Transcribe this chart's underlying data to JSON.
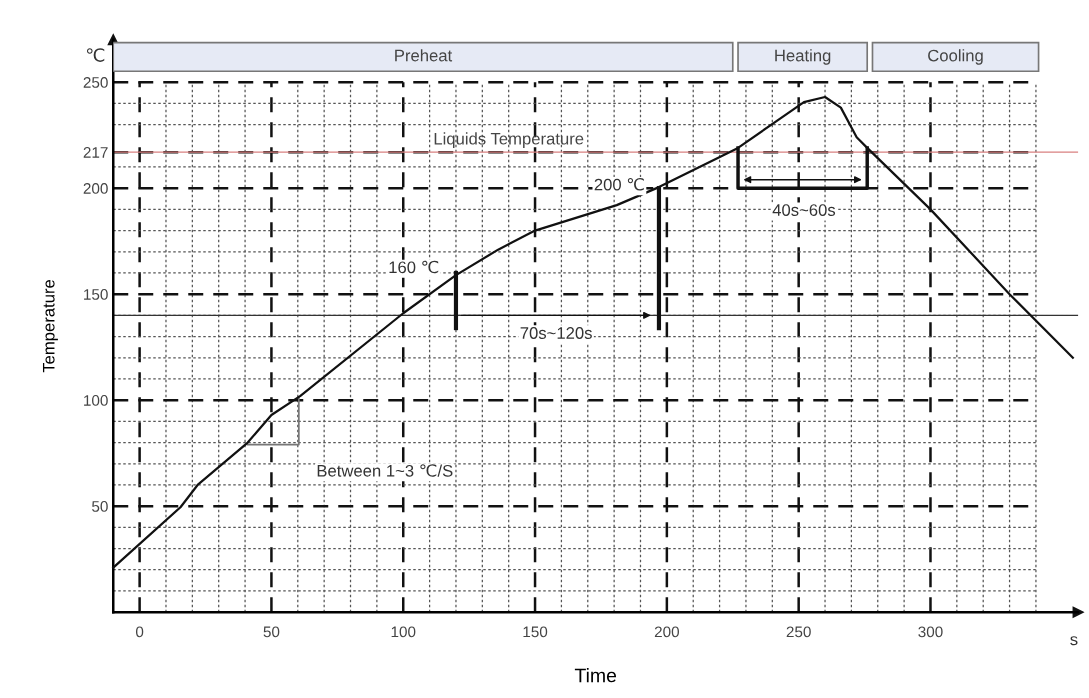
{
  "chart_data": {
    "type": "line",
    "xlabel": "Time",
    "ylabel": "Temperature",
    "x": [
      -10,
      15.5,
      22,
      41,
      50,
      61,
      100,
      120,
      136,
      150,
      181,
      197,
      227,
      242,
      252,
      260,
      266,
      272,
      276,
      300,
      330,
      354
    ],
    "series": [
      {
        "color": "#111111",
        "values": [
          21,
          49.5,
          60,
          80,
          93,
          102,
          141,
          159,
          171,
          180,
          192,
          200.5,
          219,
          232,
          240.6,
          243,
          238,
          224,
          219,
          190,
          150,
          120
        ]
      }
    ],
    "xlim": [
      -10,
      356
    ],
    "ylim": [
      0,
      270
    ],
    "xticks": [
      0,
      {
        "value": 10,
        "label": null
      },
      {
        "value": 20,
        "label": null
      },
      {
        "value": 30,
        "label": null
      },
      {
        "value": 40,
        "label": null
      },
      50,
      {
        "value": 60,
        "label": null
      },
      {
        "value": 70,
        "label": null
      },
      {
        "value": 80,
        "label": null
      },
      {
        "value": 90,
        "label": null
      },
      100,
      {
        "value": 110,
        "label": null
      },
      {
        "value": 120,
        "label": null
      },
      {
        "value": 130,
        "label": null
      },
      {
        "value": 140,
        "label": null
      },
      150,
      {
        "value": 160,
        "label": null
      },
      {
        "value": 170,
        "label": null
      },
      {
        "value": 180,
        "label": null
      },
      {
        "value": 190,
        "label": null
      },
      200,
      {
        "value": 210,
        "label": null
      },
      {
        "value": 220,
        "label": null
      },
      {
        "value": 230,
        "label": null
      },
      {
        "value": 240,
        "label": null
      },
      250,
      {
        "value": 260,
        "label": null
      },
      {
        "value": 270,
        "label": null
      },
      {
        "value": 280,
        "label": null
      },
      {
        "value": 290,
        "label": null
      },
      300,
      {
        "value": 310,
        "label": null
      },
      {
        "value": 320,
        "label": null
      },
      {
        "value": 330,
        "label": null
      },
      {
        "value": 340,
        "label": null
      }
    ],
    "yticks": [
      {
        "value": 10,
        "label": null
      },
      {
        "value": 20,
        "label": null
      },
      {
        "value": 30,
        "label": null
      },
      {
        "value": 40,
        "label": null
      },
      50,
      {
        "value": 60,
        "label": null
      },
      {
        "value": 70,
        "label": null
      },
      {
        "value": 80,
        "label": null
      },
      {
        "value": 90,
        "label": null
      },
      100,
      {
        "value": 110,
        "label": null
      },
      {
        "value": 120,
        "label": null
      },
      {
        "value": 130,
        "label": null
      },
      {
        "value": 140,
        "label": null
      },
      150,
      {
        "value": 160,
        "label": null
      },
      {
        "value": 170,
        "label": null
      },
      {
        "value": 180,
        "label": null
      },
      {
        "value": 190,
        "label": null
      },
      200,
      {
        "value": 210,
        "label": null
      },
      217,
      {
        "value": 230,
        "label": null
      },
      {
        "value": 240,
        "label": null
      },
      250
    ],
    "grid": true,
    "marker": "none",
    "line_style": "solid",
    "ref_lines": [
      {
        "axis": "y",
        "value": 217,
        "label": "Liquids Temperature",
        "color": "#d98080"
      },
      {
        "axis": "y",
        "value": 140,
        "label": null,
        "color": "#333333"
      }
    ],
    "bands": [
      {
        "axis": "x",
        "from": -10,
        "to": 225,
        "label": "Preheat",
        "color": "#e6eaf5"
      },
      {
        "axis": "x",
        "from": 227,
        "to": 276,
        "label": "Heating",
        "color": "#e6eaf5"
      },
      {
        "axis": "x",
        "from": 278,
        "to": 341,
        "label": "Cooling",
        "color": "#e6eaf5"
      }
    ],
    "annotations": [
      "℃",
      "s",
      "160 ℃",
      "200 ℃",
      "70s~120s",
      "40s~60s",
      "Between 1~3 ℃/S"
    ]
  }
}
